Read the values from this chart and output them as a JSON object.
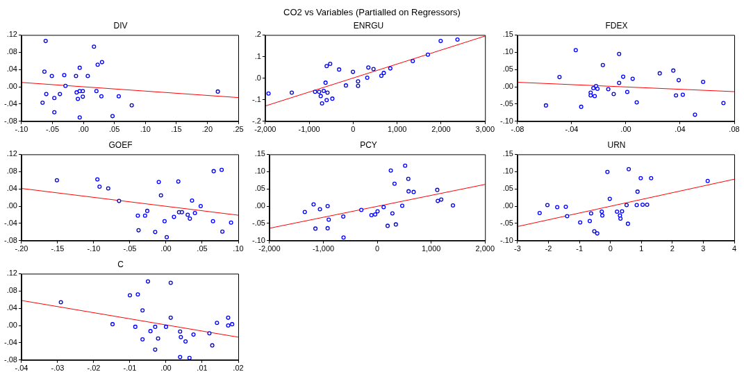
{
  "chart_data": [
    {
      "type": "scatter",
      "title": "DIV",
      "annotations": [
        "CO2 vs Variables (Partialled on Regressors)"
      ],
      "xlim": [
        -0.1,
        0.25
      ],
      "xticks": [
        {
          "value": -0.1,
          "label": "-.10"
        },
        {
          "value": -0.05,
          "label": "-.05"
        },
        {
          "value": 0,
          "label": ".00"
        },
        {
          "value": 0.05,
          "label": ".05"
        },
        {
          "value": 0.1,
          "label": ".10"
        },
        {
          "value": 0.15,
          "label": ".15"
        },
        {
          "value": 0.2,
          "label": ".20"
        },
        {
          "value": 0.25,
          "label": ".25"
        }
      ],
      "ylim": [
        -0.08,
        0.12
      ],
      "yticks": [
        {
          "value": -0.08,
          "label": "-.08"
        },
        {
          "value": -0.04,
          "label": "-.04"
        },
        {
          "value": 0,
          "label": ".00"
        },
        {
          "value": 0.04,
          "label": ".04"
        },
        {
          "value": 0.08,
          "label": ".08"
        },
        {
          "value": 0.12,
          "label": ".12"
        }
      ],
      "series": [
        {
          "color": "#0000ff",
          "marker": "circle",
          "x": [
            -0.061,
            0.017,
            0.03,
            0.023,
            -0.006,
            -0.063,
            -0.051,
            -0.031,
            -0.012,
            0.007,
            -0.029,
            -0.06,
            -0.038,
            -0.011,
            -0.006,
            -0.001,
            0.021,
            -0.047,
            -0.009,
            -0.001,
            0.029,
            0.057,
            -0.066,
            0.078,
            -0.047,
            -0.006,
            0.047,
            0.217
          ],
          "values": [
            0.106,
            0.093,
            0.057,
            0.051,
            0.044,
            0.035,
            0.025,
            0.027,
            0.025,
            0.025,
            0.002,
            -0.017,
            -0.017,
            -0.013,
            -0.01,
            -0.01,
            -0.01,
            -0.026,
            -0.028,
            -0.023,
            -0.022,
            -0.022,
            -0.037,
            -0.043,
            -0.059,
            -0.071,
            -0.068,
            -0.011
          ]
        },
        {
          "type": "line",
          "color": "#ff0000",
          "x": [
            -0.1,
            0.25
          ],
          "values": [
            0.01,
            -0.025
          ]
        }
      ]
    },
    {
      "type": "scatter",
      "title": "ENRGU",
      "xlim": [
        -2000,
        3000
      ],
      "xticks": [
        {
          "value": -2000,
          "label": "-2,000"
        },
        {
          "value": -1000,
          "label": "-1,000"
        },
        0,
        {
          "value": 1000,
          "label": "1,000"
        },
        {
          "value": 2000,
          "label": "2,000"
        },
        {
          "value": 3000,
          "label": "3,000"
        }
      ],
      "ylim": [
        -0.2,
        0.2
      ],
      "yticks": [
        {
          "value": -0.2,
          "label": "-.2"
        },
        {
          "value": -0.1,
          "label": "-.1"
        },
        {
          "value": 0,
          "label": ".0"
        },
        {
          "value": 0.1,
          "label": ".1"
        },
        {
          "value": 0.2,
          "label": ".2"
        }
      ],
      "series": [
        {
          "color": "#0000ff",
          "marker": "circle",
          "x": [
            -1926,
            -1397,
            -867,
            -775,
            -670,
            -584,
            -738,
            -603,
            -474,
            -708,
            -628,
            -603,
            -523,
            -320,
            -5,
            -165,
            111,
            111,
            320,
            345,
            463,
            641,
            696,
            845,
            1356,
            1700,
            1990,
            2372
          ],
          "values": [
            -0.071,
            -0.067,
            -0.063,
            -0.063,
            -0.059,
            -0.067,
            -0.083,
            -0.102,
            -0.095,
            -0.117,
            -0.021,
            0.056,
            0.066,
            0.04,
            0.029,
            -0.034,
            -0.015,
            -0.036,
            0.002,
            0.049,
            0.042,
            0.011,
            0.024,
            0.045,
            0.079,
            0.109,
            0.172,
            0.179
          ]
        },
        {
          "type": "line",
          "color": "#ff0000",
          "x": [
            -2000,
            3000
          ],
          "values": [
            -0.129,
            0.195
          ]
        }
      ]
    },
    {
      "type": "scatter",
      "title": "FDEX",
      "xlim": [
        -0.08,
        0.08
      ],
      "xticks": [
        {
          "value": -0.08,
          "label": "-.08"
        },
        {
          "value": -0.04,
          "label": "-.04"
        },
        {
          "value": 0,
          "label": ".00"
        },
        {
          "value": 0.04,
          "label": ".04"
        },
        {
          "value": 0.08,
          "label": ".08"
        }
      ],
      "ylim": [
        -0.1,
        0.15
      ],
      "yticks": [
        {
          "value": -0.1,
          "label": "-.10"
        },
        {
          "value": -0.05,
          "label": "-.05"
        },
        {
          "value": 0,
          "label": ".00"
        },
        {
          "value": 0.05,
          "label": ".05"
        },
        {
          "value": 0.1,
          "label": ".10"
        },
        {
          "value": 0.15,
          "label": ".15"
        }
      ],
      "series": [
        {
          "color": "#0000ff",
          "marker": "circle",
          "x": [
            -0.059,
            -0.049,
            -0.037,
            -0.033,
            -0.026,
            -0.026,
            -0.023,
            -0.024,
            -0.022,
            -0.021,
            -0.017,
            -0.013,
            -0.009,
            -0.005,
            -0.005,
            -0.002,
            0.001,
            0.005,
            0.008,
            0.025,
            0.035,
            0.039,
            0.037,
            0.042,
            0.051,
            0.057,
            0.072
          ],
          "values": [
            -0.054,
            0.028,
            0.106,
            -0.058,
            -0.017,
            -0.025,
            -0.027,
            -0.004,
            0.002,
            -0.006,
            0.063,
            -0.007,
            -0.021,
            0.011,
            0.095,
            0.029,
            -0.015,
            0.023,
            -0.045,
            0.039,
            0.047,
            0.019,
            -0.025,
            -0.023,
            -0.081,
            0.014,
            -0.047
          ]
        },
        {
          "type": "line",
          "color": "#ff0000",
          "x": [
            -0.08,
            0.08
          ],
          "values": [
            0.013,
            -0.014
          ]
        }
      ]
    },
    {
      "type": "scatter",
      "title": "GOEF",
      "xlim": [
        -0.2,
        0.1
      ],
      "xticks": [
        {
          "value": -0.2,
          "label": "-.20"
        },
        {
          "value": -0.15,
          "label": "-.15"
        },
        {
          "value": -0.1,
          "label": "-.10"
        },
        {
          "value": -0.05,
          "label": "-.05"
        },
        {
          "value": 0,
          "label": ".00"
        },
        {
          "value": 0.05,
          "label": ".05"
        },
        {
          "value": 0.1,
          "label": ".10"
        }
      ],
      "ylim": [
        -0.08,
        0.12
      ],
      "yticks": [
        {
          "value": -0.08,
          "label": "-.08"
        },
        {
          "value": -0.04,
          "label": "-.04"
        },
        {
          "value": 0,
          "label": ".00"
        },
        {
          "value": 0.04,
          "label": ".04"
        },
        {
          "value": 0.08,
          "label": ".08"
        },
        {
          "value": 0.12,
          "label": ".12"
        }
      ],
      "series": [
        {
          "color": "#0000ff",
          "marker": "circle",
          "x": [
            -0.151,
            -0.095,
            -0.092,
            -0.08,
            -0.065,
            -0.039,
            -0.029,
            -0.026,
            -0.038,
            -0.015,
            -0.01,
            -0.007,
            -0.002,
            0.001,
            0.011,
            0.017,
            0.018,
            0.022,
            0.03,
            0.033,
            0.036,
            0.04,
            0.048,
            0.065,
            0.066,
            0.077,
            0.078,
            0.09
          ],
          "values": [
            0.06,
            0.062,
            0.045,
            0.041,
            0.012,
            -0.022,
            -0.022,
            -0.011,
            -0.056,
            -0.06,
            0.056,
            0.025,
            -0.035,
            -0.072,
            -0.025,
            0.057,
            -0.014,
            -0.014,
            -0.02,
            -0.029,
            0.013,
            -0.016,
            0.0,
            -0.035,
            0.081,
            0.084,
            -0.059,
            -0.038
          ]
        },
        {
          "type": "line",
          "color": "#ff0000",
          "x": [
            -0.2,
            0.1
          ],
          "values": [
            0.041,
            -0.021
          ]
        }
      ]
    },
    {
      "type": "scatter",
      "title": "PCY",
      "xlim": [
        -2000,
        2000
      ],
      "xticks": [
        {
          "value": -2000,
          "label": "-2,000"
        },
        {
          "value": -1000,
          "label": "-1,000"
        },
        0,
        {
          "value": 1000,
          "label": "1,000"
        },
        {
          "value": 2000,
          "label": "2,000"
        }
      ],
      "ylim": [
        -0.1,
        0.15
      ],
      "yticks": [
        {
          "value": -0.1,
          "label": "-.10"
        },
        {
          "value": -0.05,
          "label": "-.05"
        },
        {
          "value": 0,
          "label": ".00"
        },
        {
          "value": 0.05,
          "label": ".05"
        },
        {
          "value": 0.1,
          "label": ".10"
        },
        {
          "value": 0.15,
          "label": ".15"
        }
      ],
      "series": [
        {
          "color": "#0000ff",
          "marker": "circle",
          "x": [
            -1345,
            -1182,
            -1148,
            -1064,
            -921,
            -901,
            -921,
            -631,
            -626,
            -296,
            -108,
            -39,
            5,
            118,
            192,
            251,
            281,
            320,
            345,
            463,
            517,
            576,
            581,
            675,
            1113,
            1123,
            1187,
            1404
          ],
          "values": [
            -0.017,
            0.005,
            -0.065,
            -0.009,
            0.0,
            -0.039,
            -0.064,
            -0.03,
            -0.091,
            -0.011,
            -0.026,
            -0.024,
            -0.015,
            -0.003,
            -0.057,
            0.103,
            -0.021,
            0.065,
            -0.053,
            0.001,
            0.117,
            0.079,
            0.043,
            0.041,
            0.047,
            0.015,
            0.019,
            0.002
          ]
        },
        {
          "type": "line",
          "color": "#ff0000",
          "x": [
            -2000,
            2000
          ],
          "values": [
            -0.064,
            0.063
          ]
        }
      ]
    },
    {
      "type": "scatter",
      "title": "URN",
      "xlim": [
        -3,
        4
      ],
      "xticks": [
        -3,
        -2,
        -1,
        0,
        1,
        2,
        3,
        4
      ],
      "ylim": [
        -0.1,
        0.15
      ],
      "yticks": [
        {
          "value": -0.1,
          "label": "-.10"
        },
        {
          "value": -0.05,
          "label": "-.05"
        },
        {
          "value": 0,
          "label": ".00"
        },
        {
          "value": 0.05,
          "label": ".05"
        },
        {
          "value": 0.1,
          "label": ".10"
        },
        {
          "value": 0.15,
          "label": ".15"
        }
      ],
      "series": [
        {
          "color": "#0000ff",
          "marker": "circle",
          "x": [
            -2.285,
            -2.035,
            -1.717,
            -1.441,
            -1.398,
            -0.976,
            -0.666,
            -0.623,
            -0.519,
            -0.425,
            -0.279,
            -0.261,
            -0.097,
            -0.02,
            0.213,
            0.308,
            0.325,
            0.376,
            0.523,
            0.566,
            0.592,
            0.85,
            0.876,
            0.979,
            1.04,
            1.186,
            1.315,
            3.141
          ],
          "values": [
            -0.02,
            0.003,
            -0.003,
            -0.002,
            -0.029,
            -0.047,
            -0.043,
            -0.021,
            -0.073,
            -0.079,
            -0.016,
            -0.027,
            0.099,
            0.021,
            -0.016,
            -0.027,
            -0.036,
            -0.015,
            0.003,
            -0.051,
            0.107,
            0.003,
            0.042,
            0.081,
            0.004,
            0.004,
            0.081,
            0.073
          ]
        },
        {
          "type": "line",
          "color": "#ff0000",
          "x": [
            -3,
            4
          ],
          "values": [
            -0.059,
            0.078
          ]
        }
      ]
    },
    {
      "type": "scatter",
      "title": "C",
      "xlim": [
        -0.04,
        0.02
      ],
      "xticks": [
        {
          "value": -0.04,
          "label": "-.04"
        },
        {
          "value": -0.03,
          "label": "-.03"
        },
        {
          "value": -0.02,
          "label": "-.02"
        },
        {
          "value": -0.01,
          "label": "-.01"
        },
        {
          "value": 0,
          "label": ".00"
        },
        {
          "value": 0.01,
          "label": ".01"
        },
        {
          "value": 0.02,
          "label": ".02"
        }
      ],
      "ylim": [
        -0.08,
        0.12
      ],
      "yticks": [
        {
          "value": -0.08,
          "label": "-.08"
        },
        {
          "value": -0.04,
          "label": "-.04"
        },
        {
          "value": 0,
          "label": ".00"
        },
        {
          "value": 0.04,
          "label": ".04"
        },
        {
          "value": 0.08,
          "label": ".08"
        },
        {
          "value": 0.12,
          "label": ".12"
        }
      ],
      "series": [
        {
          "color": "#0000ff",
          "marker": "circle",
          "x": [
            -0.0291,
            -0.0148,
            -0.01,
            -0.0078,
            -0.0085,
            -0.0065,
            -0.0065,
            -0.005,
            -0.0043,
            -0.003,
            -0.003,
            -0.0022,
            0.0,
            0.0013,
            0.0013,
            0.0039,
            0.0041,
            0.0039,
            0.0054,
            0.0065,
            0.0076,
            0.012,
            0.0128,
            0.0141,
            0.0172,
            0.0172,
            0.0183
          ],
          "values": [
            0.054,
            0.003,
            0.07,
            0.072,
            -0.003,
            0.035,
            -0.032,
            0.102,
            -0.013,
            -0.003,
            -0.056,
            -0.03,
            -0.003,
            0.099,
            0.018,
            -0.014,
            -0.027,
            -0.073,
            -0.037,
            -0.075,
            -0.021,
            -0.018,
            -0.046,
            0.006,
            0.018,
            0.0,
            0.003
          ]
        },
        {
          "type": "line",
          "color": "#ff0000",
          "x": [
            -0.04,
            0.02
          ],
          "values": [
            0.058,
            -0.027
          ]
        }
      ]
    }
  ]
}
